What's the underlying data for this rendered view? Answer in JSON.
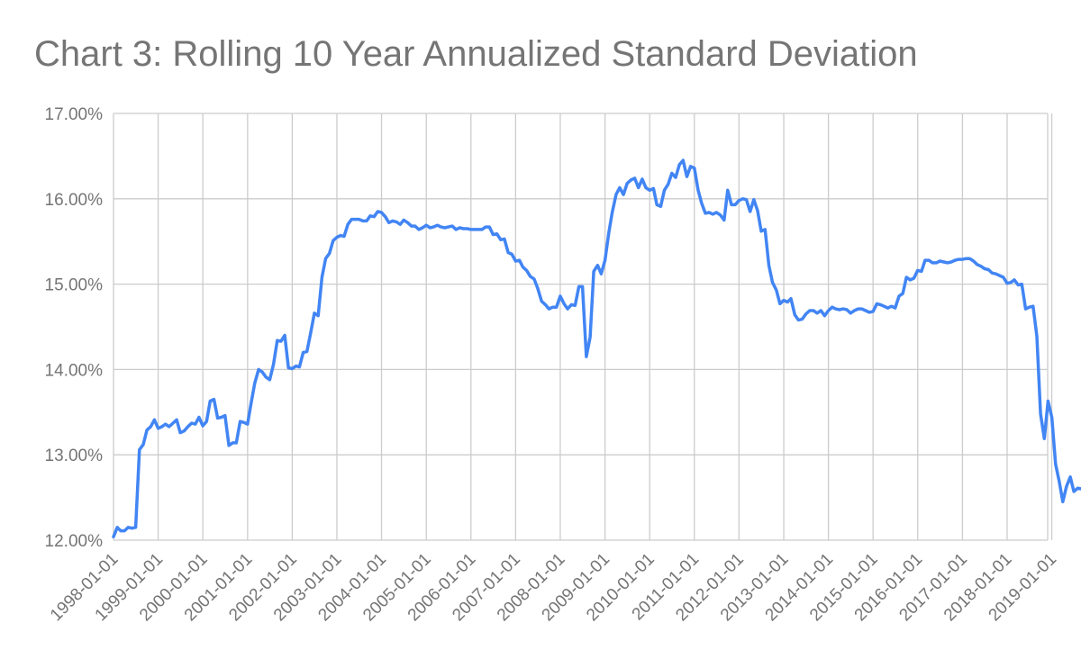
{
  "chart_data": {
    "type": "line",
    "title": "Chart 3: Rolling 10 Year Annualized Standard Deviation",
    "xlabel": "",
    "ylabel": "",
    "ylim": [
      12.0,
      17.0
    ],
    "y_ticks": [
      "12.00%",
      "13.00%",
      "14.00%",
      "15.00%",
      "16.00%",
      "17.00%"
    ],
    "x_ticks": [
      "1998-01-01",
      "1999-01-01",
      "2000-01-01",
      "2001-01-01",
      "2002-01-01",
      "2003-01-01",
      "2004-01-01",
      "2005-01-01",
      "2006-01-01",
      "2007-01-01",
      "2008-01-01",
      "2009-01-01",
      "2010-01-01",
      "2011-01-01",
      "2012-01-01",
      "2013-01-01",
      "2014-01-01",
      "2015-01-01",
      "2016-01-01",
      "2017-01-01",
      "2018-01-01",
      "2019-01-01"
    ],
    "x_range": [
      "1998-01-01",
      "2019-07-01"
    ],
    "grid": true,
    "line_color": "#4285f4",
    "series": [
      {
        "points": [
          [
            "1998-01-01",
            12.04
          ],
          [
            "1998-02-01",
            12.15
          ],
          [
            "1998-03-01",
            12.11
          ],
          [
            "1998-04-01",
            12.11
          ],
          [
            "1998-05-01",
            12.15
          ],
          [
            "1998-06-01",
            12.14
          ],
          [
            "1998-07-01",
            12.15
          ],
          [
            "1998-08-01",
            13.06
          ],
          [
            "1998-09-01",
            13.12
          ],
          [
            "1998-10-01",
            13.29
          ],
          [
            "1998-11-01",
            13.33
          ],
          [
            "1998-12-01",
            13.41
          ],
          [
            "1999-01-01",
            13.31
          ],
          [
            "1999-02-01",
            13.33
          ],
          [
            "1999-03-01",
            13.36
          ],
          [
            "1999-04-01",
            13.33
          ],
          [
            "1999-05-01",
            13.37
          ],
          [
            "1999-06-01",
            13.41
          ],
          [
            "1999-07-01",
            13.26
          ],
          [
            "1999-08-01",
            13.28
          ],
          [
            "1999-09-01",
            13.33
          ],
          [
            "1999-10-01",
            13.37
          ],
          [
            "1999-11-01",
            13.36
          ],
          [
            "1999-12-01",
            13.44
          ],
          [
            "2000-01-01",
            13.34
          ],
          [
            "2000-02-01",
            13.39
          ],
          [
            "2000-03-01",
            13.63
          ],
          [
            "2000-04-01",
            13.65
          ],
          [
            "2000-05-01",
            13.43
          ],
          [
            "2000-06-01",
            13.44
          ],
          [
            "2000-07-01",
            13.46
          ],
          [
            "2000-08-01",
            13.11
          ],
          [
            "2000-09-01",
            13.14
          ],
          [
            "2000-10-01",
            13.14
          ],
          [
            "2000-11-01",
            13.39
          ],
          [
            "2000-12-01",
            13.38
          ],
          [
            "2001-01-01",
            13.36
          ],
          [
            "2001-02-01",
            13.62
          ],
          [
            "2001-03-01",
            13.84
          ],
          [
            "2001-04-01",
            14.0
          ],
          [
            "2001-05-01",
            13.97
          ],
          [
            "2001-06-01",
            13.91
          ],
          [
            "2001-07-01",
            13.88
          ],
          [
            "2001-08-01",
            14.06
          ],
          [
            "2001-09-01",
            14.34
          ],
          [
            "2001-10-01",
            14.33
          ],
          [
            "2001-11-01",
            14.4
          ],
          [
            "2001-12-01",
            14.02
          ],
          [
            "2002-01-01",
            14.01
          ],
          [
            "2002-02-01",
            14.04
          ],
          [
            "2002-03-01",
            14.03
          ],
          [
            "2002-04-01",
            14.2
          ],
          [
            "2002-05-01",
            14.21
          ],
          [
            "2002-06-01",
            14.43
          ],
          [
            "2002-07-01",
            14.66
          ],
          [
            "2002-08-01",
            14.63
          ],
          [
            "2002-09-01",
            15.08
          ],
          [
            "2002-10-01",
            15.3
          ],
          [
            "2002-11-01",
            15.36
          ],
          [
            "2002-12-01",
            15.51
          ],
          [
            "2003-01-01",
            15.55
          ],
          [
            "2003-02-01",
            15.57
          ],
          [
            "2003-03-01",
            15.56
          ],
          [
            "2003-04-01",
            15.7
          ],
          [
            "2003-05-01",
            15.76
          ],
          [
            "2003-06-01",
            15.76
          ],
          [
            "2003-07-01",
            15.76
          ],
          [
            "2003-08-01",
            15.74
          ],
          [
            "2003-09-01",
            15.74
          ],
          [
            "2003-10-01",
            15.8
          ],
          [
            "2003-11-01",
            15.79
          ],
          [
            "2003-12-01",
            15.85
          ],
          [
            "2004-01-01",
            15.84
          ],
          [
            "2004-02-01",
            15.79
          ],
          [
            "2004-03-01",
            15.72
          ],
          [
            "2004-04-01",
            15.74
          ],
          [
            "2004-05-01",
            15.73
          ],
          [
            "2004-06-01",
            15.7
          ],
          [
            "2004-07-01",
            15.75
          ],
          [
            "2004-08-01",
            15.72
          ],
          [
            "2004-09-01",
            15.68
          ],
          [
            "2004-10-01",
            15.68
          ],
          [
            "2004-11-01",
            15.64
          ],
          [
            "2004-12-01",
            15.66
          ],
          [
            "2005-01-01",
            15.69
          ],
          [
            "2005-02-01",
            15.66
          ],
          [
            "2005-03-01",
            15.67
          ],
          [
            "2005-04-01",
            15.69
          ],
          [
            "2005-05-01",
            15.67
          ],
          [
            "2005-06-01",
            15.66
          ],
          [
            "2005-07-01",
            15.67
          ],
          [
            "2005-08-01",
            15.68
          ],
          [
            "2005-09-01",
            15.64
          ],
          [
            "2005-10-01",
            15.66
          ],
          [
            "2005-11-01",
            15.65
          ],
          [
            "2005-12-01",
            15.65
          ],
          [
            "2006-01-01",
            15.64
          ],
          [
            "2006-02-01",
            15.64
          ],
          [
            "2006-03-01",
            15.64
          ],
          [
            "2006-04-01",
            15.64
          ],
          [
            "2006-05-01",
            15.67
          ],
          [
            "2006-06-01",
            15.67
          ],
          [
            "2006-07-01",
            15.58
          ],
          [
            "2006-08-01",
            15.59
          ],
          [
            "2006-09-01",
            15.52
          ],
          [
            "2006-10-01",
            15.53
          ],
          [
            "2006-11-01",
            15.37
          ],
          [
            "2006-12-01",
            15.35
          ],
          [
            "2007-01-01",
            15.27
          ],
          [
            "2007-02-01",
            15.28
          ],
          [
            "2007-03-01",
            15.2
          ],
          [
            "2007-04-01",
            15.16
          ],
          [
            "2007-05-01",
            15.09
          ],
          [
            "2007-06-01",
            15.06
          ],
          [
            "2007-07-01",
            14.95
          ],
          [
            "2007-08-01",
            14.8
          ],
          [
            "2007-09-01",
            14.76
          ],
          [
            "2007-10-01",
            14.71
          ],
          [
            "2007-11-01",
            14.73
          ],
          [
            "2007-12-01",
            14.73
          ],
          [
            "2008-01-01",
            14.86
          ],
          [
            "2008-02-01",
            14.77
          ],
          [
            "2008-03-01",
            14.71
          ],
          [
            "2008-04-01",
            14.76
          ],
          [
            "2008-05-01",
            14.75
          ],
          [
            "2008-06-01",
            14.97
          ],
          [
            "2008-07-01",
            14.97
          ],
          [
            "2008-08-01",
            14.15
          ],
          [
            "2008-09-01",
            14.38
          ],
          [
            "2008-10-01",
            15.15
          ],
          [
            "2008-11-01",
            15.22
          ],
          [
            "2008-12-01",
            15.12
          ],
          [
            "2009-01-01",
            15.28
          ],
          [
            "2009-02-01",
            15.6
          ],
          [
            "2009-03-01",
            15.84
          ],
          [
            "2009-04-01",
            16.05
          ],
          [
            "2009-05-01",
            16.13
          ],
          [
            "2009-06-01",
            16.05
          ],
          [
            "2009-07-01",
            16.18
          ],
          [
            "2009-08-01",
            16.22
          ],
          [
            "2009-09-01",
            16.24
          ],
          [
            "2009-10-01",
            16.13
          ],
          [
            "2009-11-01",
            16.23
          ],
          [
            "2009-12-01",
            16.13
          ],
          [
            "2010-01-01",
            16.1
          ],
          [
            "2010-02-01",
            16.12
          ],
          [
            "2010-03-01",
            15.93
          ],
          [
            "2010-04-01",
            15.91
          ],
          [
            "2010-05-01",
            16.1
          ],
          [
            "2010-06-01",
            16.17
          ],
          [
            "2010-07-01",
            16.3
          ],
          [
            "2010-08-01",
            16.25
          ],
          [
            "2010-09-01",
            16.4
          ],
          [
            "2010-10-01",
            16.45
          ],
          [
            "2010-11-01",
            16.26
          ],
          [
            "2010-12-01",
            16.38
          ],
          [
            "2011-01-01",
            16.36
          ],
          [
            "2011-02-01",
            16.1
          ],
          [
            "2011-03-01",
            15.95
          ],
          [
            "2011-04-01",
            15.83
          ],
          [
            "2011-05-01",
            15.84
          ],
          [
            "2011-06-01",
            15.82
          ],
          [
            "2011-07-01",
            15.84
          ],
          [
            "2011-08-01",
            15.81
          ],
          [
            "2011-09-01",
            15.75
          ],
          [
            "2011-10-01",
            16.1
          ],
          [
            "2011-11-01",
            15.93
          ],
          [
            "2011-12-01",
            15.93
          ],
          [
            "2012-01-01",
            15.98
          ],
          [
            "2012-02-01",
            16.0
          ],
          [
            "2012-03-01",
            15.99
          ],
          [
            "2012-04-01",
            15.85
          ],
          [
            "2012-05-01",
            15.99
          ],
          [
            "2012-06-01",
            15.86
          ],
          [
            "2012-07-01",
            15.62
          ],
          [
            "2012-08-01",
            15.64
          ],
          [
            "2012-09-01",
            15.22
          ],
          [
            "2012-10-01",
            15.02
          ],
          [
            "2012-11-01",
            14.93
          ],
          [
            "2012-12-01",
            14.77
          ],
          [
            "2013-01-01",
            14.81
          ],
          [
            "2013-02-01",
            14.79
          ],
          [
            "2013-03-01",
            14.83
          ],
          [
            "2013-04-01",
            14.64
          ],
          [
            "2013-05-01",
            14.58
          ],
          [
            "2013-06-01",
            14.59
          ],
          [
            "2013-07-01",
            14.65
          ],
          [
            "2013-08-01",
            14.69
          ],
          [
            "2013-09-01",
            14.69
          ],
          [
            "2013-10-01",
            14.66
          ],
          [
            "2013-11-01",
            14.69
          ],
          [
            "2013-12-01",
            14.63
          ],
          [
            "2014-01-01",
            14.69
          ],
          [
            "2014-02-01",
            14.73
          ],
          [
            "2014-03-01",
            14.71
          ],
          [
            "2014-04-01",
            14.7
          ],
          [
            "2014-05-01",
            14.71
          ],
          [
            "2014-06-01",
            14.7
          ],
          [
            "2014-07-01",
            14.66
          ],
          [
            "2014-08-01",
            14.69
          ],
          [
            "2014-09-01",
            14.71
          ],
          [
            "2014-10-01",
            14.71
          ],
          [
            "2014-11-01",
            14.69
          ],
          [
            "2014-12-01",
            14.67
          ],
          [
            "2015-01-01",
            14.68
          ],
          [
            "2015-02-01",
            14.77
          ],
          [
            "2015-03-01",
            14.76
          ],
          [
            "2015-04-01",
            14.74
          ],
          [
            "2015-05-01",
            14.72
          ],
          [
            "2015-06-01",
            14.74
          ],
          [
            "2015-07-01",
            14.72
          ],
          [
            "2015-08-01",
            14.86
          ],
          [
            "2015-09-01",
            14.89
          ],
          [
            "2015-10-01",
            15.08
          ],
          [
            "2015-11-01",
            15.05
          ],
          [
            "2015-12-01",
            15.07
          ],
          [
            "2016-01-01",
            15.16
          ],
          [
            "2016-02-01",
            15.15
          ],
          [
            "2016-03-01",
            15.28
          ],
          [
            "2016-04-01",
            15.28
          ],
          [
            "2016-05-01",
            15.25
          ],
          [
            "2016-06-01",
            15.25
          ],
          [
            "2016-07-01",
            15.27
          ],
          [
            "2016-08-01",
            15.26
          ],
          [
            "2016-09-01",
            15.25
          ],
          [
            "2016-10-01",
            15.26
          ],
          [
            "2016-11-01",
            15.28
          ],
          [
            "2016-12-01",
            15.29
          ],
          [
            "2017-01-01",
            15.29
          ],
          [
            "2017-02-01",
            15.3
          ],
          [
            "2017-03-01",
            15.3
          ],
          [
            "2017-04-01",
            15.27
          ],
          [
            "2017-05-01",
            15.23
          ],
          [
            "2017-06-01",
            15.21
          ],
          [
            "2017-07-01",
            15.18
          ],
          [
            "2017-08-01",
            15.17
          ],
          [
            "2017-09-01",
            15.13
          ],
          [
            "2017-10-01",
            15.12
          ],
          [
            "2017-11-01",
            15.1
          ],
          [
            "2017-12-01",
            15.08
          ],
          [
            "2018-01-01",
            15.01
          ],
          [
            "2018-02-01",
            15.02
          ],
          [
            "2018-03-01",
            15.05
          ],
          [
            "2018-04-01",
            14.99
          ],
          [
            "2018-05-01",
            15.0
          ],
          [
            "2018-06-01",
            14.71
          ],
          [
            "2018-07-01",
            14.73
          ],
          [
            "2018-08-01",
            14.74
          ],
          [
            "2018-09-01",
            14.39
          ],
          [
            "2018-10-01",
            13.48
          ],
          [
            "2018-11-01",
            13.19
          ],
          [
            "2018-12-01",
            13.63
          ],
          [
            "2019-01-01",
            13.44
          ],
          [
            "2019-02-01",
            12.89
          ],
          [
            "2019-03-01",
            12.7
          ],
          [
            "2019-04-01",
            12.45
          ],
          [
            "2019-05-01",
            12.63
          ],
          [
            "2019-06-01",
            12.74
          ],
          [
            "2019-07-01",
            12.57
          ],
          [
            "2019-08-01",
            12.61
          ],
          [
            "2019-09-01",
            12.6
          ]
        ]
      }
    ]
  }
}
